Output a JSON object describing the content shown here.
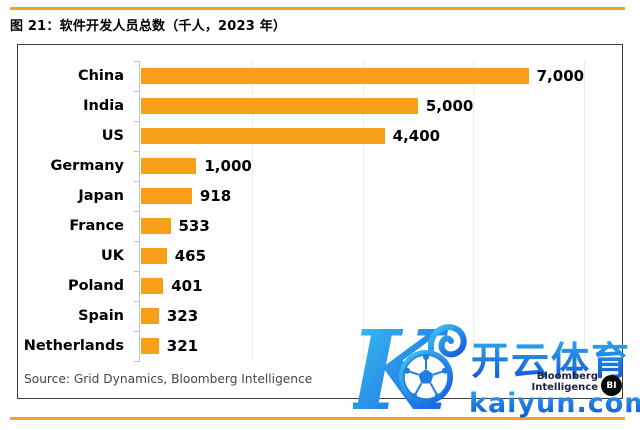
{
  "figure": {
    "title": "图 21：软件开发人员总数（千人，2023 年）",
    "source": "Source: Grid Dynamics, Bloomberg Intelligence"
  },
  "chart_data": {
    "type": "bar",
    "orientation": "horizontal",
    "title": "软件开发人员总数（千人，2023 年）",
    "categories": [
      "China",
      "India",
      "US",
      "Germany",
      "Japan",
      "France",
      "UK",
      "Poland",
      "Spain",
      "Netherlands"
    ],
    "values": [
      7000,
      5000,
      4400,
      1000,
      918,
      533,
      465,
      401,
      323,
      321
    ],
    "value_labels": [
      "7,000",
      "5,000",
      "4,400",
      "1,000",
      "918",
      "533",
      "465",
      "401",
      "323",
      "321"
    ],
    "xlabel": "",
    "ylabel": "",
    "xlim": [
      0,
      8000
    ],
    "gridline_values": [
      2000,
      4000,
      6000,
      8000
    ],
    "grid": true,
    "legend": false,
    "bar_color": "#F9A01B"
  },
  "branding": {
    "line1": "Bloomberg",
    "line2": "Intelligence",
    "badge": "BI"
  },
  "watermark": {
    "logo_letter": "K",
    "brand_cn": "开云体育",
    "brand_url": "kaiyun.com",
    "gradient_start": "#3FC9F2",
    "gradient_end": "#1356DF"
  },
  "colors": {
    "accent_orange": "#F9A01B",
    "rule_orange": "#F4A321"
  }
}
